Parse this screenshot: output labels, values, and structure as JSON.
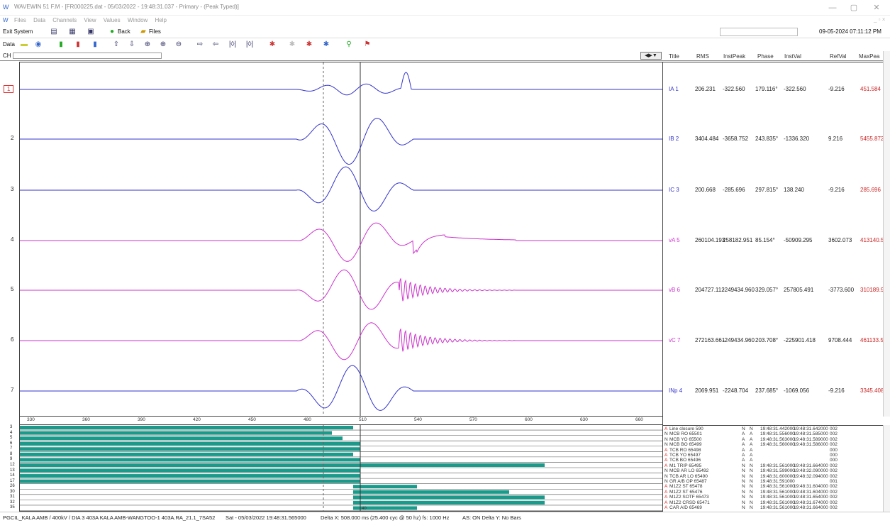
{
  "window": {
    "title": "WAVEWIN 51 F.M - [FR000225.dat - 05/03/2022 - 19:48:31.037 - Primary - (Peak Typed)]",
    "minimize": "—",
    "restore": "▢",
    "close": "✕"
  },
  "menu": [
    "Files",
    "Data",
    "Channels",
    "View",
    "Values",
    "Window",
    "Help"
  ],
  "toolbar": {
    "exit": "Exit System",
    "back": "Back",
    "files": "Files",
    "datetime": "09-05-2024  07:11:12 PM",
    "data_label": "Data",
    "ch_label": "CH"
  },
  "table_headers": [
    "Title",
    "RMS",
    "InstPeak",
    "Phase",
    "InstVal",
    "RefVal",
    "MaxPea"
  ],
  "channels": [
    {
      "num": "1",
      "title": "IA 1",
      "rms": "206.231",
      "instpeak": "-322.560",
      "phase": "179.116°",
      "instval": "-322.560",
      "refval": "-9.216",
      "maxpeak": "451.584",
      "color": "#3333cc"
    },
    {
      "num": "2",
      "title": "IB 2",
      "rms": "3404.484",
      "instpeak": "-3658.752",
      "phase": "243.835°",
      "instval": "-1336.320",
      "refval": "9.216",
      "maxpeak": "5455.872",
      "color": "#3333cc"
    },
    {
      "num": "3",
      "title": "IC 3",
      "rms": "200.668",
      "instpeak": "-285.696",
      "phase": "297.815°",
      "instval": "138.240",
      "refval": "-9.216",
      "maxpeak": "285.696",
      "color": "#3333cc"
    },
    {
      "num": "4",
      "title": "vA 5",
      "rms": "260104.193",
      "instpeak": "258182.951",
      "phase": "85.154°",
      "instval": "-50909.295",
      "refval": "3602.073",
      "maxpeak": "413140.589",
      "color": "#cc33cc"
    },
    {
      "num": "5",
      "title": "vB 6",
      "rms": "204727.112",
      "instpeak": "-249434.960",
      "phase": "329.057°",
      "instval": "257805.491",
      "refval": "-3773.600",
      "maxpeak": "310189.920",
      "color": "#cc33cc"
    },
    {
      "num": "6",
      "title": "vC 7",
      "rms": "272163.661",
      "instpeak": "-249434.960",
      "phase": "203.708°",
      "instval": "-225901.418",
      "refval": "9708.444",
      "maxpeak": "461133.520",
      "color": "#cc33cc"
    },
    {
      "num": "7",
      "title": "INp 4",
      "rms": "2069.951",
      "instpeak": "-2248.704",
      "phase": "237.685°",
      "instval": "-1069.056",
      "refval": "-9.216",
      "maxpeak": "3345.408",
      "color": "#3333cc"
    }
  ],
  "ruler_ticks": [
    "330",
    "360",
    "390",
    "420",
    "450",
    "480",
    "510",
    "540",
    "570",
    "600",
    "630",
    "660"
  ],
  "digital_rows": [
    "3",
    "4",
    "5",
    "6",
    "7",
    "8",
    "9",
    "12",
    "13",
    "14",
    "17",
    "26",
    "30",
    "31",
    "32",
    "35"
  ],
  "events": [
    {
      "st": "A",
      "name": "Line closure 590",
      "a": "N",
      "b": "N",
      "t1": "19:48:31.442000",
      "t2": "19:48:31.642000",
      "c": "002"
    },
    {
      "st": "N",
      "name": "MCB RO 65501",
      "a": "A",
      "b": "A",
      "t1": "19:48:31.556000",
      "t2": "19:48:31.585000",
      "c": "002"
    },
    {
      "st": "N",
      "name": "MCB YO 65500",
      "a": "A",
      "b": "A",
      "t1": "19:48:31.563000",
      "t2": "19:48:31.589000",
      "c": "002"
    },
    {
      "st": "N",
      "name": "MCB BO 65499",
      "a": "A",
      "b": "A",
      "t1": "19:48:31.560000",
      "t2": "19:48:31.586000",
      "c": "002"
    },
    {
      "st": "A",
      "name": "TCB RO 65498",
      "a": "A",
      "b": "A",
      "t1": "",
      "t2": "",
      "c": "000"
    },
    {
      "st": "A",
      "name": "TCB YO 65497",
      "a": "A",
      "b": "A",
      "t1": "",
      "t2": "",
      "c": "000"
    },
    {
      "st": "A",
      "name": "TCB BO 65496",
      "a": "A",
      "b": "A",
      "t1": "",
      "t2": "",
      "c": "000"
    },
    {
      "st": "A",
      "name": "M1 TRIP 65495",
      "a": "N",
      "b": "N",
      "t1": "19:48:31.561000",
      "t2": "19:48:31.664000",
      "c": "002"
    },
    {
      "st": "N",
      "name": "MCB AR LO 65492",
      "a": "N",
      "b": "N",
      "t1": "19:48:31.599000",
      "t2": "19:48:32.090000",
      "c": "002"
    },
    {
      "st": "N",
      "name": "TCB AR LO 65490",
      "a": "N",
      "b": "N",
      "t1": "19:48:31.600000",
      "t2": "19:48:32.094000",
      "c": "002"
    },
    {
      "st": "N",
      "name": "GR A/B OP 65487",
      "a": "N",
      "b": "N",
      "t1": "19:48:31.591000",
      "t2": "",
      "c": "001"
    },
    {
      "st": "A",
      "name": "M1Z2 ST 65478",
      "a": "N",
      "b": "N",
      "t1": "19:48:31.561000",
      "t2": "19:48:31.604000",
      "c": "002"
    },
    {
      "st": "A",
      "name": "M1Z2 ST 65476",
      "a": "N",
      "b": "N",
      "t1": "19:48:31.561000",
      "t2": "19:48:31.604000",
      "c": "002"
    },
    {
      "st": "A",
      "name": "M1Z2 SOTF 65473",
      "a": "N",
      "b": "N",
      "t1": "19:48:31.561000",
      "t2": "19:48:31.654000",
      "c": "002"
    },
    {
      "st": "A",
      "name": "M1Z2 CRSD 65471",
      "a": "N",
      "b": "N",
      "t1": "19:48:31.561000",
      "t2": "19:48:31.674000",
      "c": "002"
    },
    {
      "st": "A",
      "name": "CAR AID 65469",
      "a": "N",
      "b": "N",
      "t1": "19:48:31.561000",
      "t2": "19:48:31.664000",
      "c": "002"
    }
  ],
  "status": {
    "station": "PGCIL_KALA AMB / 400kV / DIA 3   403A KALA AMB-WANGTOO-1   403A.RA_21.1_7SA52",
    "time": "Sat - 05/03/2022 19:48:31.565000",
    "delta_x": "Delta X: 508.000 ms  (25.400 cyc @ 50 hz)   fs: 1000 Hz",
    "as": "AS: ON   Delta Y: No Bars"
  },
  "cursor_label": "40"
}
